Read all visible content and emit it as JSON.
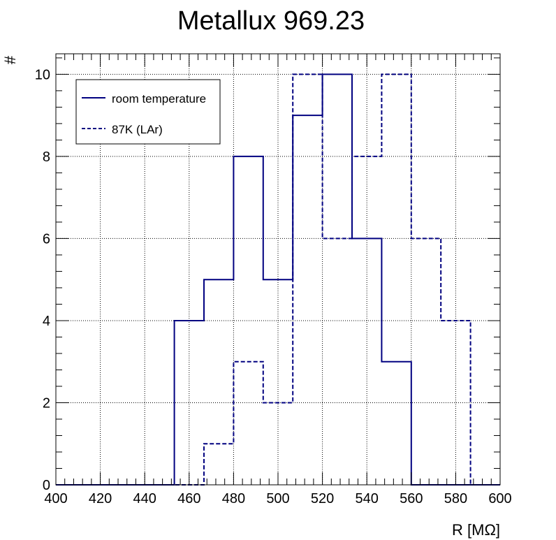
{
  "chart_data": {
    "type": "histogram",
    "title": "Metallux 969.23",
    "xlabel": "R [MΩ]",
    "ylabel": "#",
    "xlim": [
      400,
      600
    ],
    "ylim": [
      0,
      10.5
    ],
    "grid": true,
    "legend_position": "top-left",
    "x_ticks": [
      "400",
      "420",
      "440",
      "460",
      "480",
      "500",
      "520",
      "540",
      "560",
      "580",
      "600"
    ],
    "y_ticks": [
      "0",
      "2",
      "4",
      "6",
      "8",
      "10"
    ],
    "bin_edges": [
      400,
      413.33,
      426.67,
      440,
      453.33,
      466.67,
      480,
      493.33,
      506.67,
      520,
      533.33,
      546.67,
      560,
      573.33,
      586.67,
      600
    ],
    "series": [
      {
        "name": "room temperature",
        "color": "#000080",
        "style": "solid",
        "values": [
          0,
          0,
          0,
          0,
          4,
          5,
          8,
          5,
          9,
          10,
          6,
          3,
          0,
          0,
          0
        ]
      },
      {
        "name": "87K (LAr)",
        "color": "#000080",
        "style": "dashed",
        "values": [
          0,
          0,
          0,
          0,
          0,
          1,
          3,
          2,
          10,
          6,
          8,
          10,
          6,
          4,
          0
        ]
      }
    ]
  }
}
